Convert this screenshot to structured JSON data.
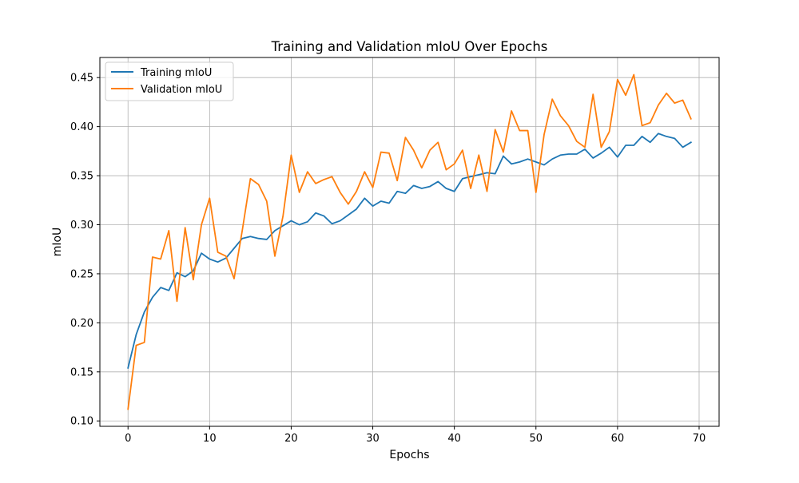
{
  "chart_data": {
    "type": "line",
    "title": "Training and Validation mIoU Over Epochs",
    "xlabel": "Epochs",
    "ylabel": "mIoU",
    "xlim": [
      -3.45,
      72.45
    ],
    "ylim": [
      0.0945,
      0.4705
    ],
    "xticks": [
      0,
      10,
      20,
      30,
      40,
      50,
      60,
      70
    ],
    "yticks": [
      0.1,
      0.15,
      0.2,
      0.25,
      0.3,
      0.35,
      0.4,
      0.45
    ],
    "ytick_labels": [
      "0.10",
      "0.15",
      "0.20",
      "0.25",
      "0.30",
      "0.35",
      "0.40",
      "0.45"
    ],
    "xtick_labels": [
      "0",
      "10",
      "20",
      "30",
      "40",
      "50",
      "60",
      "70"
    ],
    "grid": true,
    "legend_position": "top-left",
    "series": [
      {
        "name": "Training mIoU",
        "color": "#1f77b4",
        "values": [
          0.154,
          0.188,
          0.211,
          0.226,
          0.236,
          0.233,
          0.251,
          0.247,
          0.253,
          0.271,
          0.265,
          0.262,
          0.266,
          0.276,
          0.286,
          0.288,
          0.286,
          0.285,
          0.294,
          0.299,
          0.304,
          0.3,
          0.303,
          0.312,
          0.309,
          0.301,
          0.304,
          0.31,
          0.316,
          0.327,
          0.319,
          0.324,
          0.322,
          0.334,
          0.332,
          0.34,
          0.337,
          0.339,
          0.344,
          0.337,
          0.334,
          0.347,
          0.349,
          0.351,
          0.353,
          0.352,
          0.37,
          0.362,
          0.364,
          0.367,
          0.364,
          0.361,
          0.367,
          0.371,
          0.372,
          0.372,
          0.377,
          0.368,
          0.373,
          0.379,
          0.369,
          0.381,
          0.381,
          0.39,
          0.384,
          0.393,
          0.39,
          0.388,
          0.379,
          0.384
        ]
      },
      {
        "name": "Validation mIoU",
        "color": "#ff7f0e",
        "values": [
          0.112,
          0.177,
          0.18,
          0.267,
          0.265,
          0.294,
          0.222,
          0.297,
          0.244,
          0.3,
          0.327,
          0.272,
          0.268,
          0.245,
          0.294,
          0.347,
          0.341,
          0.324,
          0.268,
          0.309,
          0.371,
          0.333,
          0.354,
          0.342,
          0.346,
          0.349,
          0.333,
          0.321,
          0.334,
          0.354,
          0.338,
          0.374,
          0.373,
          0.345,
          0.389,
          0.376,
          0.358,
          0.376,
          0.384,
          0.356,
          0.362,
          0.376,
          0.337,
          0.371,
          0.334,
          0.397,
          0.374,
          0.416,
          0.396,
          0.396,
          0.333,
          0.392,
          0.428,
          0.411,
          0.401,
          0.385,
          0.379,
          0.433,
          0.379,
          0.395,
          0.448,
          0.432,
          0.453,
          0.401,
          0.404,
          0.422,
          0.434,
          0.424,
          0.427,
          0.408
        ]
      }
    ]
  }
}
